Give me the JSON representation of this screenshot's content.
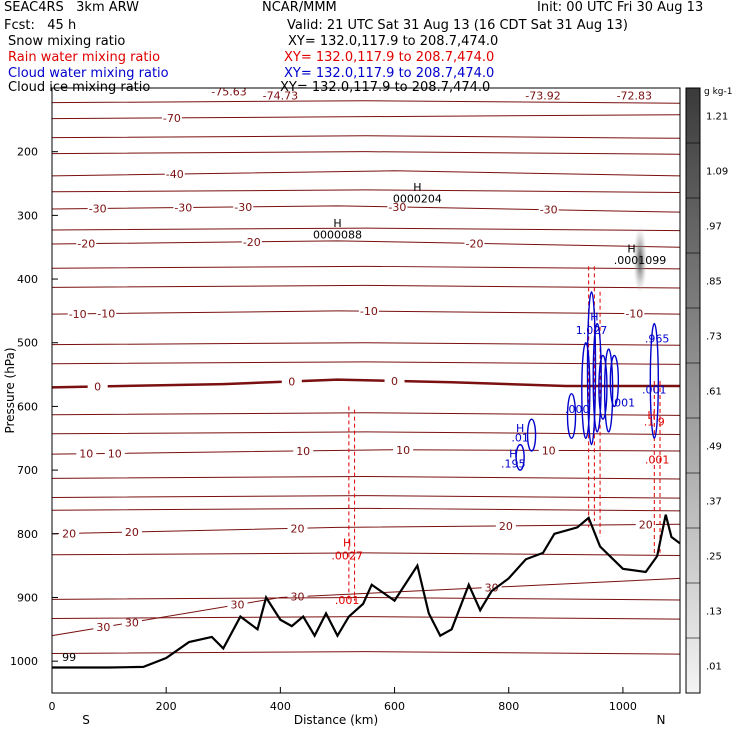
{
  "header": {
    "model": "SEAC4RS   3km ARW",
    "org": "NCAR/MMM",
    "init": "Init: 00 UTC Fri 30 Aug 13",
    "fcst": "Fcst:   45 h",
    "valid": "Valid: 21 UTC Sat 31 Aug 13 (16 CDT Sat 31 Aug 13)",
    "legend": [
      {
        "label": "Snow mixing ratio",
        "xy": "XY= 132.0,117.9 to 208.7,474.0",
        "color": "#000000"
      },
      {
        "label": "Rain water mixing ratio",
        "xy": "XY= 132.0,117.9 to 208.7,474.0",
        "color": "#e00000"
      },
      {
        "label": "Cloud water mixing ratio",
        "xy": "XY= 132.0,117.9 to 208.7,474.0",
        "color": "#0000cc"
      },
      {
        "label": "Cloud ice mixing ratio",
        "xy": "XY= 132.0,117.9 to 208.7,474.0",
        "color": "#000000"
      }
    ]
  },
  "chart_data": {
    "type": "cross-section",
    "xlabel": "Distance (km)",
    "ylabel": "Pressure (hPa)",
    "xlim": [
      0,
      1100
    ],
    "ylim": [
      1050,
      100
    ],
    "xticks": [
      0,
      200,
      400,
      600,
      800,
      1000
    ],
    "yticks": [
      200,
      300,
      400,
      500,
      600,
      700,
      800,
      900,
      1000
    ],
    "x_end_labels": {
      "left": "S",
      "right": "N"
    },
    "colorbar": {
      "unit": "g kg-1",
      "ticks": [
        "1.21",
        "1.09",
        ".97",
        ".85",
        ".73",
        ".61",
        ".49",
        ".37",
        ".25",
        ".13",
        ".01"
      ]
    },
    "terrain": [
      [
        0,
        1010
      ],
      [
        100,
        1010
      ],
      [
        160,
        1009
      ],
      [
        200,
        995
      ],
      [
        240,
        970
      ],
      [
        280,
        962
      ],
      [
        300,
        980
      ],
      [
        330,
        930
      ],
      [
        360,
        950
      ],
      [
        375,
        900
      ],
      [
        400,
        935
      ],
      [
        420,
        945
      ],
      [
        440,
        930
      ],
      [
        460,
        960
      ],
      [
        480,
        925
      ],
      [
        500,
        960
      ],
      [
        520,
        930
      ],
      [
        545,
        910
      ],
      [
        560,
        880
      ],
      [
        600,
        905
      ],
      [
        640,
        850
      ],
      [
        660,
        925
      ],
      [
        680,
        960
      ],
      [
        700,
        950
      ],
      [
        730,
        880
      ],
      [
        750,
        920
      ],
      [
        770,
        890
      ],
      [
        800,
        870
      ],
      [
        830,
        840
      ],
      [
        860,
        830
      ],
      [
        880,
        800
      ],
      [
        920,
        790
      ],
      [
        940,
        775
      ],
      [
        960,
        820
      ],
      [
        1000,
        855
      ],
      [
        1040,
        860
      ],
      [
        1060,
        835
      ],
      [
        1075,
        770
      ],
      [
        1085,
        805
      ],
      [
        1100,
        815
      ]
    ],
    "temperature_contours": [
      {
        "value": "0",
        "points": [
          [
            0,
            570
          ],
          [
            300,
            565
          ],
          [
            500,
            558
          ],
          [
            700,
            562
          ],
          [
            900,
            568
          ],
          [
            1100,
            568
          ]
        ],
        "bold": true,
        "labels": [
          [
            80,
            0
          ],
          [
            420,
            0
          ],
          [
            600,
            0
          ]
        ]
      },
      {
        "value": "-70",
        "points": [
          [
            0,
            148
          ],
          [
            1100,
            142
          ]
        ],
        "labels": [
          [
            210,
            -70
          ]
        ]
      },
      {
        "value": "-40",
        "points": [
          [
            0,
            238
          ],
          [
            600,
            230
          ],
          [
            1100,
            238
          ]
        ],
        "labels": [
          [
            215,
            -40
          ]
        ]
      },
      {
        "value": "-30",
        "points": [
          [
            0,
            290
          ],
          [
            500,
            285
          ],
          [
            1100,
            295
          ]
        ],
        "labels": [
          [
            80,
            -30
          ],
          [
            230,
            -30
          ],
          [
            335,
            -30
          ],
          [
            605,
            -30
          ],
          [
            870,
            -30
          ]
        ]
      },
      {
        "value": "-20",
        "points": [
          [
            0,
            345
          ],
          [
            500,
            340
          ],
          [
            1100,
            350
          ]
        ],
        "labels": [
          [
            60,
            -20
          ],
          [
            350,
            -20
          ],
          [
            740,
            -20
          ]
        ]
      },
      {
        "value": "-10",
        "points": [
          [
            0,
            455
          ],
          [
            500,
            450
          ],
          [
            1100,
            455
          ]
        ],
        "labels": [
          [
            45,
            -10
          ],
          [
            95,
            -10
          ],
          [
            555,
            -10
          ],
          [
            1020,
            -10
          ]
        ]
      },
      {
        "value": "10",
        "points": [
          [
            0,
            675
          ],
          [
            600,
            668
          ],
          [
            1100,
            670
          ]
        ],
        "labels": [
          [
            60,
            10
          ],
          [
            110,
            10
          ],
          [
            440,
            10
          ],
          [
            615,
            10
          ],
          [
            870,
            10
          ]
        ]
      },
      {
        "value": "20",
        "points": [
          [
            0,
            800
          ],
          [
            500,
            790
          ],
          [
            1100,
            785
          ]
        ],
        "labels": [
          [
            30,
            20
          ],
          [
            140,
            20
          ],
          [
            430,
            20
          ],
          [
            795,
            20
          ],
          [
            1040,
            20
          ]
        ]
      },
      {
        "value": "30",
        "points": [
          [
            0,
            960
          ],
          [
            400,
            900
          ],
          [
            1100,
            870
          ]
        ],
        "labels": [
          [
            90,
            30
          ],
          [
            140,
            30
          ],
          [
            325,
            30
          ],
          [
            430,
            30
          ],
          [
            770,
            30
          ]
        ]
      }
    ],
    "annotations": [
      {
        "text": "-75.63",
        "x": 310,
        "p": 112
      },
      {
        "text": "-74.73",
        "x": 400,
        "p": 118
      },
      {
        "text": "-73.92",
        "x": 860,
        "p": 118
      },
      {
        "text": "-72.83",
        "x": 1020,
        "p": 118
      },
      {
        "text": "H",
        "x": 640,
        "p": 262
      },
      {
        "text": "0000204",
        "x": 640,
        "p": 280
      },
      {
        "text": "H",
        "x": 500,
        "p": 318
      },
      {
        "text": "0000088",
        "x": 500,
        "p": 336
      },
      {
        "text": "H",
        "x": 1015,
        "p": 358
      },
      {
        "text": ".0001099",
        "x": 1030,
        "p": 376
      },
      {
        "text": "1.027",
        "x": 945,
        "p": 486
      },
      {
        "text": ".965",
        "x": 1060,
        "p": 500
      },
      {
        "text": ".001",
        "x": 1055,
        "p": 580
      },
      {
        "text": ".001",
        "x": 1000,
        "p": 600
      },
      {
        "text": ".000",
        "x": 920,
        "p": 610
      },
      {
        "text": "H",
        "x": 808,
        "p": 680
      },
      {
        "text": ".195",
        "x": 808,
        "p": 696
      },
      {
        "text": "H",
        "x": 517,
        "p": 820
      },
      {
        "text": ".0027",
        "x": 517,
        "p": 840
      },
      {
        "text": ".001",
        "x": 517,
        "p": 910
      },
      {
        "text": "99",
        "x": 30,
        "p": 1000
      },
      {
        "text": "H",
        "x": 820,
        "p": 640
      },
      {
        "text": ".01",
        "x": 820,
        "p": 655
      },
      {
        "text": "H",
        "x": 950,
        "p": 465
      },
      {
        "text": "H",
        "x": 1050,
        "p": 620
      },
      {
        "text": ".1 9",
        "x": 1055,
        "p": 630
      },
      {
        "text": ".001",
        "x": 1060,
        "p": 690
      }
    ]
  }
}
